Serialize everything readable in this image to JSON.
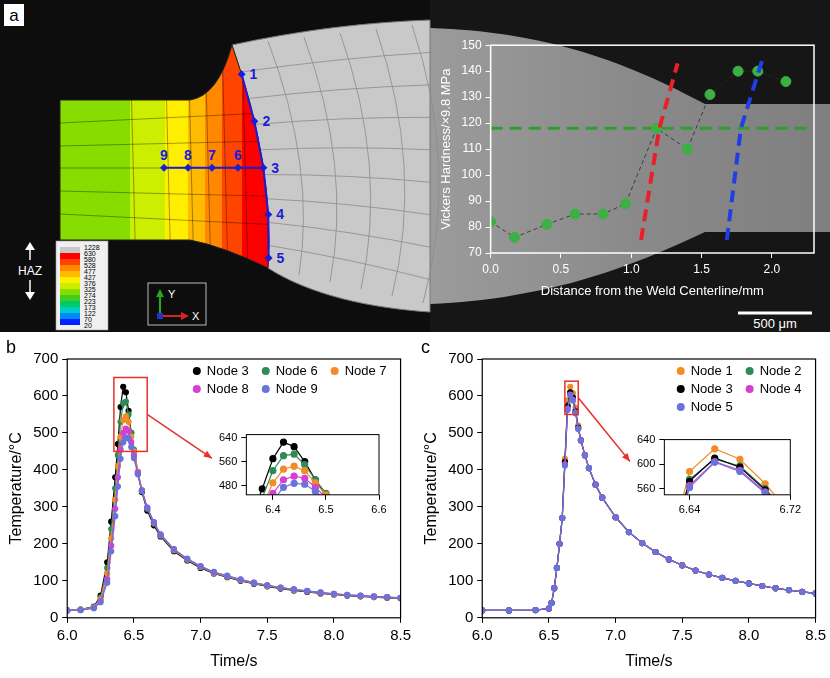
{
  "chart_data": [
    {
      "panel": "a",
      "type": "scatter",
      "x_label": "Distance from the Weld Centerline/mm",
      "y_label": "Vickers Hardness/×9.8 MPa",
      "x": [
        0.0,
        0.17,
        0.4,
        0.6,
        0.8,
        0.96,
        1.18,
        1.4,
        1.56,
        1.76,
        1.9,
        2.1
      ],
      "values": [
        82,
        76,
        81,
        85,
        85,
        89,
        118,
        110,
        131,
        140,
        140,
        136
      ],
      "color": "#3cb043",
      "marker": "circle",
      "line_style": "dashed",
      "xlim": [
        0,
        2.3
      ],
      "xticks": [
        {
          "value": 0,
          "label": "0.0"
        },
        0.5,
        {
          "value": 1,
          "label": "1.0"
        },
        1.5,
        {
          "value": 2,
          "label": "2.0"
        }
      ],
      "ylim": [
        70,
        150
      ],
      "yticks": [
        70,
        80,
        90,
        100,
        110,
        120,
        130,
        140,
        150
      ],
      "grid": false,
      "reference_line": {
        "value": 118,
        "color": "#2e9e2e",
        "line_style": "dashed"
      },
      "boundaries": [
        {
          "color": "#e8202a",
          "line_style": "dashed",
          "x": [
            1.07,
            1.2,
            1.33
          ],
          "y": [
            75,
            118,
            143
          ]
        },
        {
          "color": "#1e3ee8",
          "line_style": "dashed",
          "x": [
            1.68,
            1.78,
            1.93
          ],
          "y": [
            75,
            118,
            144
          ]
        }
      ],
      "contour_legend": {
        "title": "HAZ",
        "levels": [
          1228,
          630,
          580,
          528,
          477,
          427,
          376,
          325,
          274,
          223,
          173,
          122,
          70,
          20
        ],
        "colors": [
          "#c8c8c8",
          "#ff0000",
          "#ff4400",
          "#ff8800",
          "#ffbb00",
          "#ffee00",
          "#ccee00",
          "#88dd00",
          "#44cc22",
          "#00cc66",
          "#00cccc",
          "#0088ff",
          "#0022ff"
        ]
      },
      "nodes": [
        "1",
        "2",
        "3",
        "4",
        "5",
        "6",
        "7",
        "8",
        "9"
      ],
      "axis_triad": [
        "Y",
        "X"
      ],
      "scale_bar": "500 μm"
    },
    {
      "panel": "b",
      "type": "scatter",
      "x_label": "Time/s",
      "y_label": "Temperature/°C",
      "x": [
        6.0,
        6.1,
        6.2,
        6.25,
        6.3,
        6.33,
        6.36,
        6.38,
        6.4,
        6.42,
        6.44,
        6.46,
        6.48,
        6.5,
        6.53,
        6.56,
        6.6,
        6.65,
        6.7,
        6.8,
        6.9,
        7.0,
        7.1,
        7.2,
        7.3,
        7.4,
        7.5,
        7.6,
        7.7,
        7.8,
        7.9,
        8.0,
        8.1,
        8.2,
        8.3,
        8.4,
        8.5
      ],
      "series": [
        {
          "name": "Node 3",
          "color": "#000000",
          "values": [
            20,
            22,
            30,
            60,
            150,
            260,
            380,
            470,
            570,
            625,
            610,
            560,
            500,
            450,
            390,
            340,
            290,
            250,
            220,
            180,
            155,
            135,
            120,
            110,
            100,
            92,
            85,
            79,
            74,
            70,
            66,
            63,
            60,
            58,
            56,
            54,
            53
          ]
        },
        {
          "name": "Node 6",
          "color": "#2e8b57",
          "values": [
            20,
            22,
            29,
            55,
            135,
            240,
            350,
            440,
            530,
            580,
            585,
            550,
            500,
            455,
            395,
            345,
            295,
            255,
            222,
            182,
            157,
            137,
            121,
            111,
            101,
            93,
            86,
            80,
            75,
            71,
            67,
            64,
            61,
            59,
            57,
            55,
            54
          ]
        },
        {
          "name": "Node 7",
          "color": "#f28c28",
          "values": [
            20,
            22,
            28,
            50,
            120,
            215,
            320,
            410,
            490,
            535,
            545,
            530,
            490,
            450,
            395,
            345,
            297,
            257,
            224,
            184,
            158,
            138,
            122,
            112,
            102,
            94,
            87,
            81,
            76,
            72,
            68,
            64,
            61,
            59,
            57,
            55,
            54
          ]
        },
        {
          "name": "Node 8",
          "color": "#d63fd6",
          "values": [
            20,
            21,
            27,
            45,
            105,
            195,
            295,
            380,
            455,
            500,
            512,
            505,
            475,
            440,
            392,
            345,
            298,
            258,
            225,
            185,
            159,
            139,
            123,
            113,
            103,
            95,
            88,
            82,
            77,
            72,
            68,
            65,
            62,
            60,
            58,
            56,
            54
          ]
        },
        {
          "name": "Node 9",
          "color": "#6a73d9",
          "values": [
            20,
            21,
            26,
            42,
            95,
            180,
            275,
            355,
            430,
            475,
            488,
            485,
            462,
            432,
            388,
            343,
            298,
            259,
            226,
            186,
            160,
            140,
            124,
            114,
            104,
            95,
            88,
            82,
            77,
            73,
            69,
            65,
            62,
            60,
            58,
            56,
            54
          ]
        }
      ],
      "marker": "circle",
      "line_style": "solid",
      "xlim": [
        6,
        8.5
      ],
      "xticks": [
        {
          "value": 6,
          "label": "6.0"
        },
        6.5,
        {
          "value": 7,
          "label": "7.0"
        },
        7.5,
        {
          "value": 8,
          "label": "8.0"
        },
        8.5
      ],
      "ylim": [
        0,
        700
      ],
      "yticks": [
        0,
        100,
        200,
        300,
        400,
        500,
        600,
        700
      ],
      "grid": false,
      "legend": "upper right",
      "inset": {
        "xlim": [
          6.35,
          6.6
        ],
        "ylim": [
          450,
          650
        ],
        "xticks": [
          6.4,
          6.5,
          6.6
        ],
        "yticks": [
          480,
          560,
          640
        ]
      }
    },
    {
      "panel": "c",
      "type": "scatter",
      "x_label": "Time/s",
      "y_label": "Temperature/°C",
      "x": [
        6.0,
        6.2,
        6.4,
        6.5,
        6.52,
        6.54,
        6.56,
        6.58,
        6.6,
        6.62,
        6.64,
        6.66,
        6.68,
        6.7,
        6.72,
        6.74,
        6.77,
        6.8,
        6.85,
        6.9,
        7.0,
        7.1,
        7.2,
        7.3,
        7.4,
        7.5,
        7.6,
        7.7,
        7.8,
        7.9,
        8.0,
        8.1,
        8.2,
        8.3,
        8.4,
        8.5
      ],
      "series": [
        {
          "name": "Node 1",
          "color": "#f28c28",
          "values": [
            20,
            20,
            21,
            25,
            40,
            80,
            135,
            200,
            270,
            430,
            588,
            625,
            608,
            568,
            520,
            480,
            440,
            405,
            360,
            325,
            272,
            232,
            202,
            178,
            158,
            142,
            128,
            117,
            108,
            100,
            93,
            86,
            80,
            75,
            70,
            66
          ]
        },
        {
          "name": "Node 2",
          "color": "#2e8b57",
          "values": [
            20,
            20,
            21,
            25,
            40,
            80,
            135,
            200,
            270,
            420,
            575,
            608,
            597,
            560,
            515,
            480,
            440,
            405,
            360,
            325,
            272,
            232,
            202,
            178,
            158,
            142,
            128,
            117,
            108,
            100,
            93,
            86,
            80,
            75,
            70,
            66
          ]
        },
        {
          "name": "Node 3",
          "color": "#000000",
          "values": [
            20,
            20,
            21,
            25,
            40,
            80,
            135,
            200,
            270,
            422,
            572,
            610,
            595,
            558,
            514,
            480,
            440,
            405,
            360,
            325,
            272,
            232,
            202,
            178,
            158,
            142,
            128,
            117,
            108,
            100,
            93,
            86,
            80,
            75,
            70,
            66
          ]
        },
        {
          "name": "Node 4",
          "color": "#d63fd6",
          "values": [
            20,
            20,
            21,
            25,
            40,
            80,
            135,
            200,
            270,
            415,
            565,
            604,
            590,
            555,
            512,
            480,
            440,
            405,
            360,
            325,
            272,
            232,
            202,
            178,
            158,
            142,
            128,
            117,
            108,
            100,
            93,
            86,
            80,
            75,
            70,
            66
          ]
        },
        {
          "name": "Node 5",
          "color": "#6a73d9",
          "values": [
            20,
            20,
            21,
            25,
            40,
            80,
            135,
            200,
            270,
            412,
            562,
            603,
            588,
            553,
            511,
            480,
            440,
            405,
            360,
            325,
            272,
            232,
            202,
            178,
            158,
            142,
            128,
            117,
            108,
            100,
            93,
            86,
            80,
            75,
            70,
            66
          ]
        }
      ],
      "marker": "circle",
      "line_style": "solid",
      "xlim": [
        6,
        8.5
      ],
      "xticks": [
        {
          "value": 6,
          "label": "6.0"
        },
        6.5,
        {
          "value": 7,
          "label": "7.0"
        },
        7.5,
        {
          "value": 8,
          "label": "8.0"
        },
        8.5
      ],
      "ylim": [
        0,
        700
      ],
      "yticks": [
        0,
        100,
        200,
        300,
        400,
        500,
        600,
        700
      ],
      "grid": false,
      "legend": "upper right",
      "inset": {
        "xlim": [
          6.62,
          6.72
        ],
        "ylim": [
          550,
          640
        ],
        "xticks": [
          6.64,
          6.72
        ],
        "yticks": [
          560,
          600,
          640
        ]
      }
    }
  ]
}
